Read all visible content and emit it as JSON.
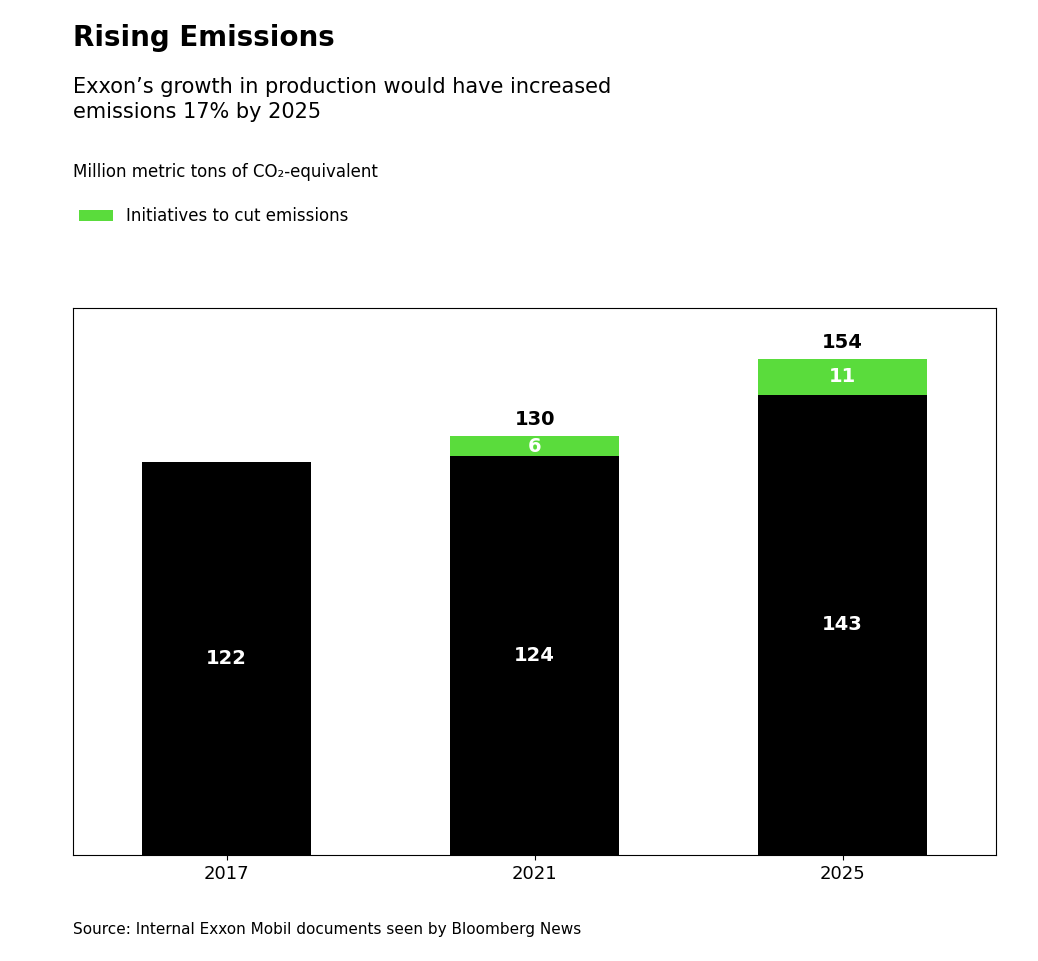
{
  "chart_data": {
    "type": "bar",
    "stacked": true,
    "title": "Rising Emissions",
    "subtitle": "Exxon’s growth in production would have increased\nemissions 17% by 2025",
    "ylabel": "Million metric tons of CO₂-equivalent",
    "source": "Source: Internal Exxon Mobil documents seen by Bloomberg News",
    "categories": [
      "2017",
      "2021",
      "2025"
    ],
    "series": [
      {
        "color": "#000000",
        "values": [
          122,
          124,
          143
        ],
        "value_labels": [
          "122",
          "124",
          "143"
        ]
      },
      {
        "name": "Initiatives to cut emissions",
        "color": "#5adc3c",
        "values": [
          0,
          6,
          11
        ],
        "value_labels": [
          null,
          "6",
          "11"
        ]
      }
    ],
    "totals": [
      null,
      130,
      154
    ],
    "data_labels": true,
    "legend": "upper left",
    "ylim": [
      0,
      170
    ],
    "yticks": [],
    "tick_labels": "x"
  }
}
